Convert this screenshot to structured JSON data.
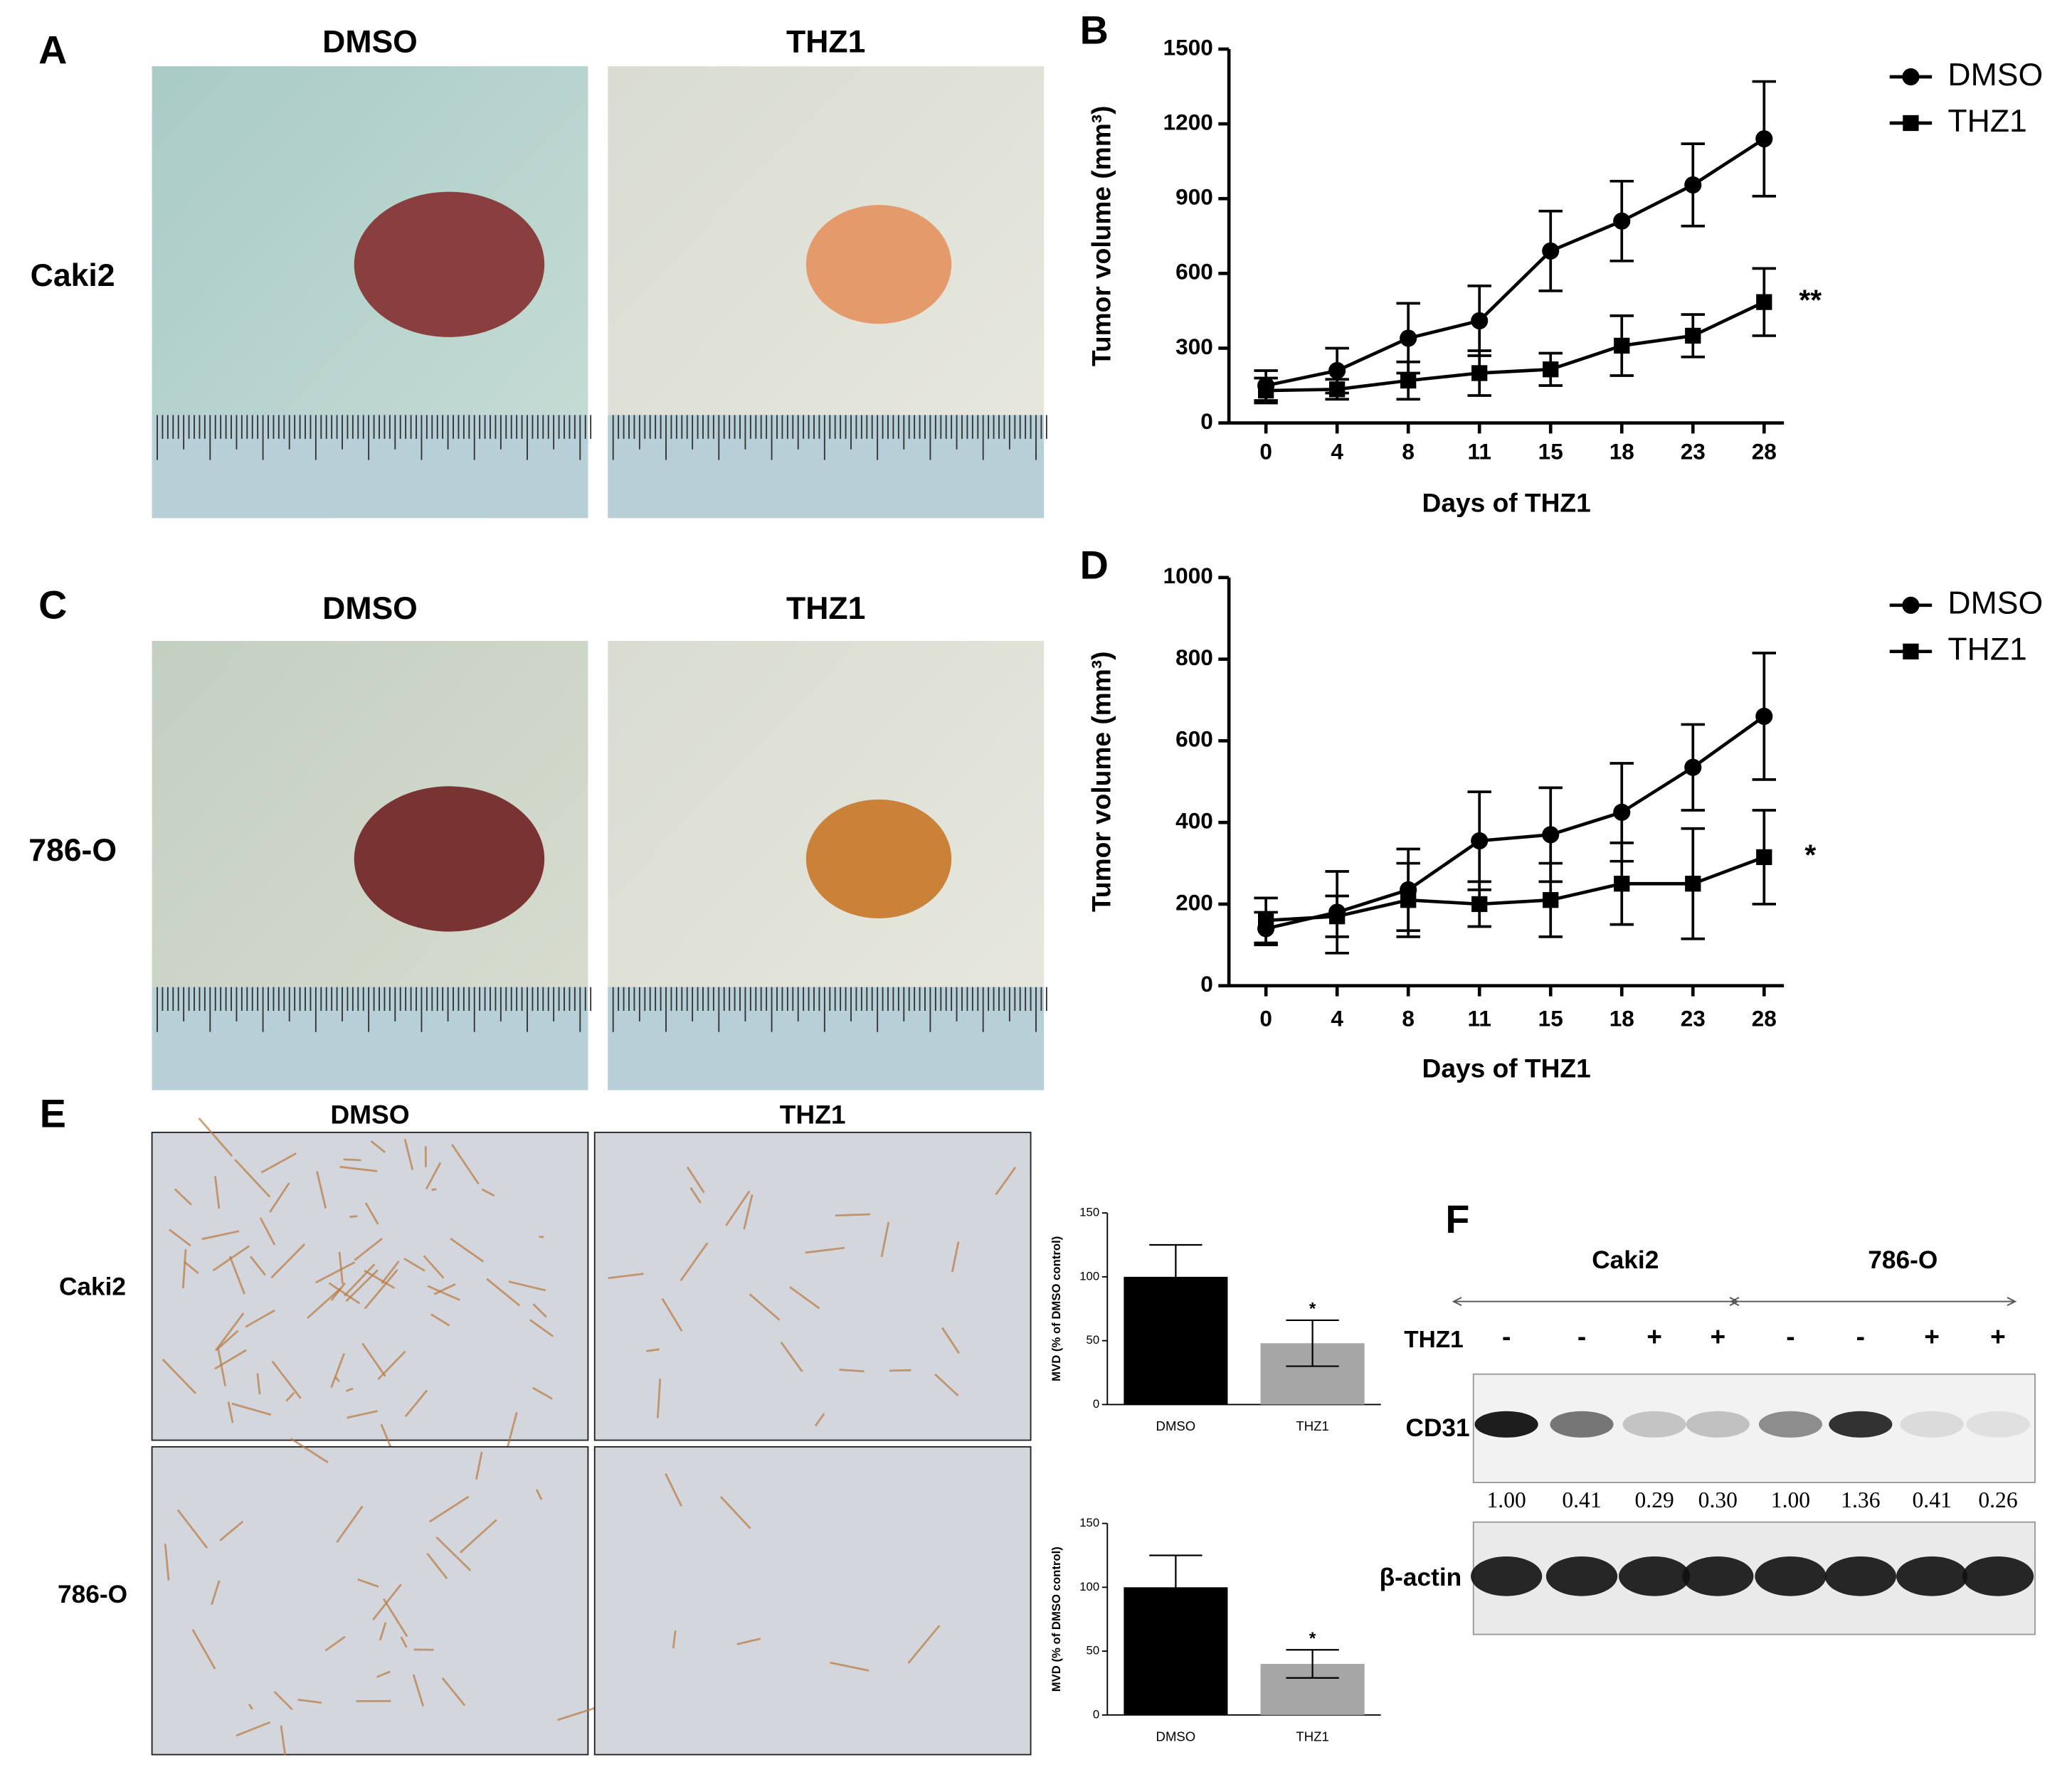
{
  "figure": {
    "panel_labels": [
      "A",
      "B",
      "C",
      "D",
      "E",
      "F"
    ],
    "photo_panels": [
      {
        "columns": [
          "DMSO",
          "THZ1"
        ],
        "row": "Caki2"
      },
      {
        "columns": [
          "DMSO",
          "THZ1"
        ],
        "row": "786-O"
      }
    ],
    "ihc": {
      "columns": [
        "DMSO",
        "THZ1"
      ],
      "rows": [
        "Caki2",
        "786-O"
      ]
    },
    "blot": {
      "groups": [
        "Caki2",
        "786-O"
      ],
      "treatment_label": "THZ1",
      "treatment": [
        "-",
        "-",
        "+",
        "+",
        "-",
        "-",
        "+",
        "+"
      ],
      "bands": [
        "CD31",
        "β-actin"
      ],
      "quantification": [
        "1.00",
        "0.41",
        "0.29",
        "0.30",
        "1.00",
        "1.36",
        "0.41",
        "0.26"
      ]
    }
  },
  "chart_data": [
    {
      "type": "line",
      "ylabel": "Tumor volume (mm³)",
      "xlabel": "Days of THZ1",
      "categories": [
        "0",
        "4",
        "8",
        "11",
        "15",
        "18",
        "23",
        "28"
      ],
      "ylim": [
        0,
        1500
      ],
      "yticks": [
        0,
        300,
        600,
        900,
        1200,
        1500
      ],
      "annotation": "**",
      "series": [
        {
          "name": "DMSO",
          "color": "#000000",
          "marker": "circle",
          "values": [
            150,
            210,
            340,
            410,
            690,
            810,
            955,
            1140
          ],
          "errors": [
            60,
            90,
            140,
            140,
            160,
            160,
            165,
            230
          ]
        },
        {
          "name": "THZ1",
          "color": "#000000",
          "marker": "square",
          "values": [
            130,
            135,
            170,
            200,
            215,
            310,
            350,
            485
          ],
          "errors": [
            50,
            40,
            75,
            90,
            65,
            120,
            85,
            135
          ]
        }
      ]
    },
    {
      "type": "line",
      "ylabel": "Tumor volume (mm³)",
      "xlabel": "Days of THZ1",
      "categories": [
        "0",
        "4",
        "8",
        "11",
        "15",
        "18",
        "23",
        "28"
      ],
      "ylim": [
        0,
        1000
      ],
      "yticks": [
        0,
        200,
        400,
        600,
        800,
        1000
      ],
      "annotation": "*",
      "series": [
        {
          "name": "DMSO",
          "color": "#000000",
          "marker": "circle",
          "values": [
            140,
            180,
            235,
            355,
            370,
            425,
            535,
            660
          ],
          "errors": [
            40,
            100,
            100,
            120,
            115,
            120,
            105,
            155
          ]
        },
        {
          "name": "THZ1",
          "color": "#000000",
          "marker": "square",
          "values": [
            160,
            170,
            210,
            200,
            210,
            250,
            250,
            315
          ],
          "errors": [
            55,
            50,
            90,
            55,
            90,
            100,
            135,
            115
          ]
        }
      ]
    },
    {
      "type": "bar",
      "ylabel": "MVD (% of DMSO control)",
      "categories": [
        "DMSO",
        "THZ1"
      ],
      "values": [
        100,
        48
      ],
      "errors": [
        25,
        18
      ],
      "colors": [
        "#000000",
        "#a6a6a6"
      ],
      "ylim": [
        0,
        150
      ],
      "yticks": [
        0,
        50,
        100,
        150
      ],
      "annotation": "*"
    },
    {
      "type": "bar",
      "ylabel": "MVD (% of DMSO control)",
      "categories": [
        "DMSO",
        "THZ1"
      ],
      "values": [
        100,
        40
      ],
      "errors": [
        25,
        11
      ],
      "colors": [
        "#000000",
        "#a6a6a6"
      ],
      "ylim": [
        0,
        150
      ],
      "yticks": [
        0,
        50,
        100,
        150
      ],
      "annotation": "*"
    }
  ]
}
